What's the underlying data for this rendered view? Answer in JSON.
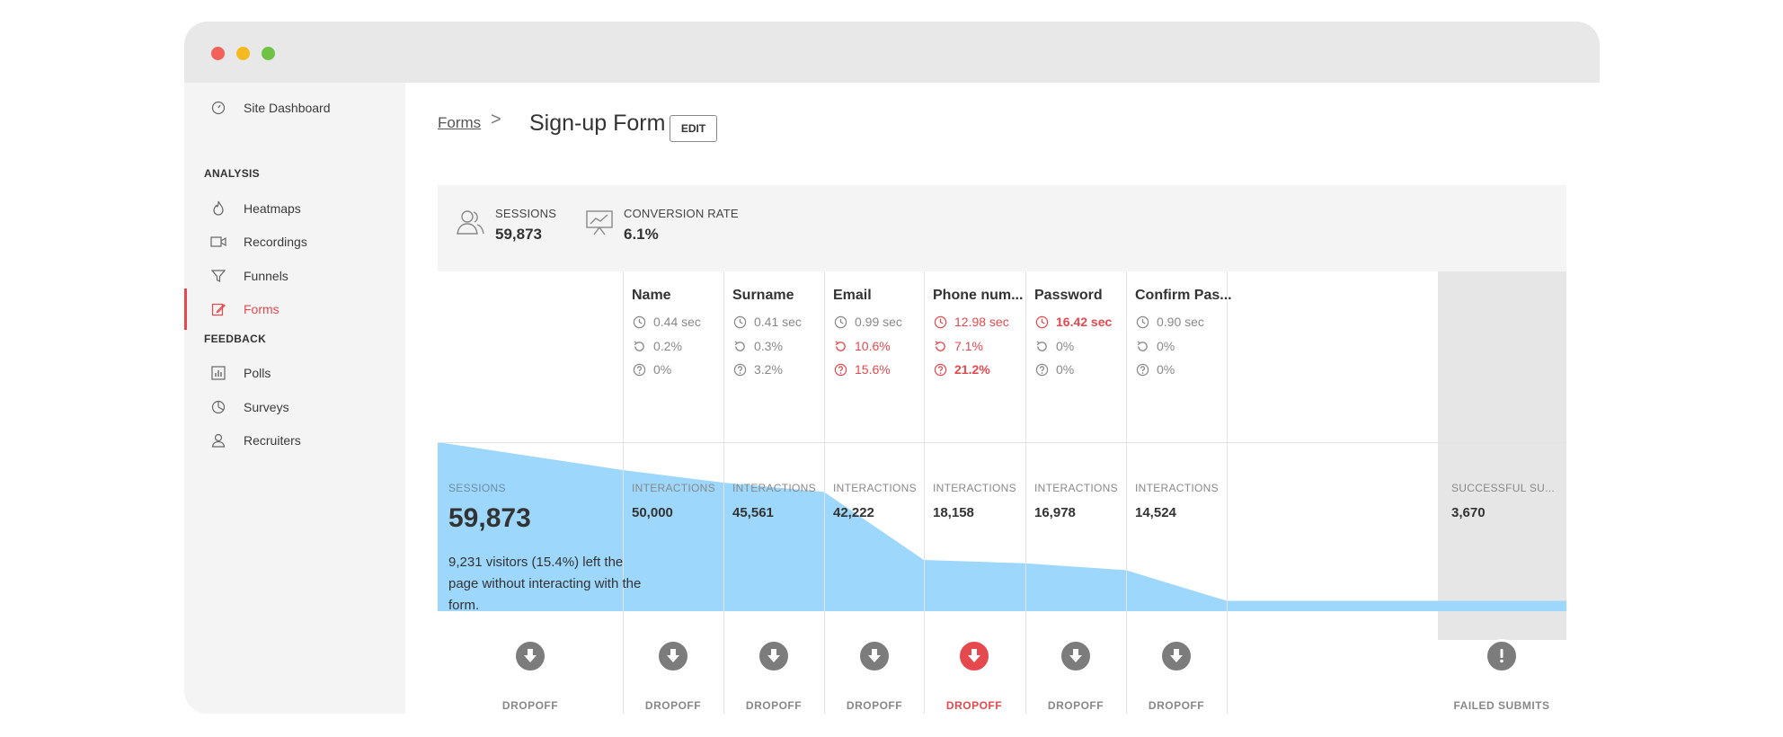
{
  "sidebar": {
    "dashboard": "Site Dashboard",
    "analysis_header": "ANALYSIS",
    "analysis_items": [
      "Heatmaps",
      "Recordings",
      "Funnels",
      "Forms"
    ],
    "feedback_header": "FEEDBACK",
    "feedback_items": [
      "Polls",
      "Surveys",
      "Recruiters"
    ],
    "active_item": "Forms"
  },
  "breadcrumb": {
    "parent": "Forms",
    "separator": ">",
    "current": "Sign-up Form",
    "edit_label": "EDIT"
  },
  "stats": {
    "sessions_label": "SESSIONS",
    "sessions_value": "59,873",
    "conversion_label": "CONVERSION RATE",
    "conversion_value": "6.1%"
  },
  "fields": [
    {
      "name": "Name",
      "time": "0.44 sec",
      "refill": "0.2%",
      "blank": "0%",
      "label": "INTERACTIONS",
      "value": "50,000",
      "dropoff": "DROPOFF"
    },
    {
      "name": "Surname",
      "time": "0.41 sec",
      "refill": "0.3%",
      "blank": "3.2%",
      "label": "INTERACTIONS",
      "value": "45,561",
      "dropoff": "DROPOFF"
    },
    {
      "name": "Email",
      "time": "0.99 sec",
      "refill": "10.6%",
      "blank": "15.6%",
      "label": "INTERACTIONS",
      "value": "42,222",
      "dropoff": "DROPOFF"
    },
    {
      "name": "Phone num...",
      "time": "12.98 sec",
      "refill": "7.1%",
      "blank": "21.2%",
      "label": "INTERACTIONS",
      "value": "18,158",
      "dropoff": "DROPOFF"
    },
    {
      "name": "Password",
      "time": "16.42 sec",
      "refill": "0%",
      "blank": "0%",
      "label": "INTERACTIONS",
      "value": "16,978",
      "dropoff": "DROPOFF"
    },
    {
      "name": "Confirm Pas...",
      "time": "0.90 sec",
      "refill": "0%",
      "blank": "0%",
      "label": "INTERACTIONS",
      "value": "14,524",
      "dropoff": "DROPOFF"
    }
  ],
  "sessions_block": {
    "label": "SESSIONS",
    "value": "59,873",
    "note": "9,231 visitors (15.4%) left the page without interacting with the form.",
    "dropoff": "DROPOFF"
  },
  "success_block": {
    "label": "SUCCESSFUL SU...",
    "value": "3,670",
    "failed": "FAILED SUBMITS"
  },
  "colors": {
    "accent_red": "#e5484d",
    "funnel_blue": "#9dd7fb",
    "sidebar_bg": "#f4f4f4"
  },
  "chart_data": {
    "type": "area",
    "categories": [
      "Sessions",
      "Name",
      "Surname",
      "Email",
      "Phone num...",
      "Password",
      "Confirm Pas...",
      "Successful submits"
    ],
    "values": [
      59873,
      50000,
      45561,
      42222,
      18158,
      16978,
      14524,
      3670
    ]
  }
}
